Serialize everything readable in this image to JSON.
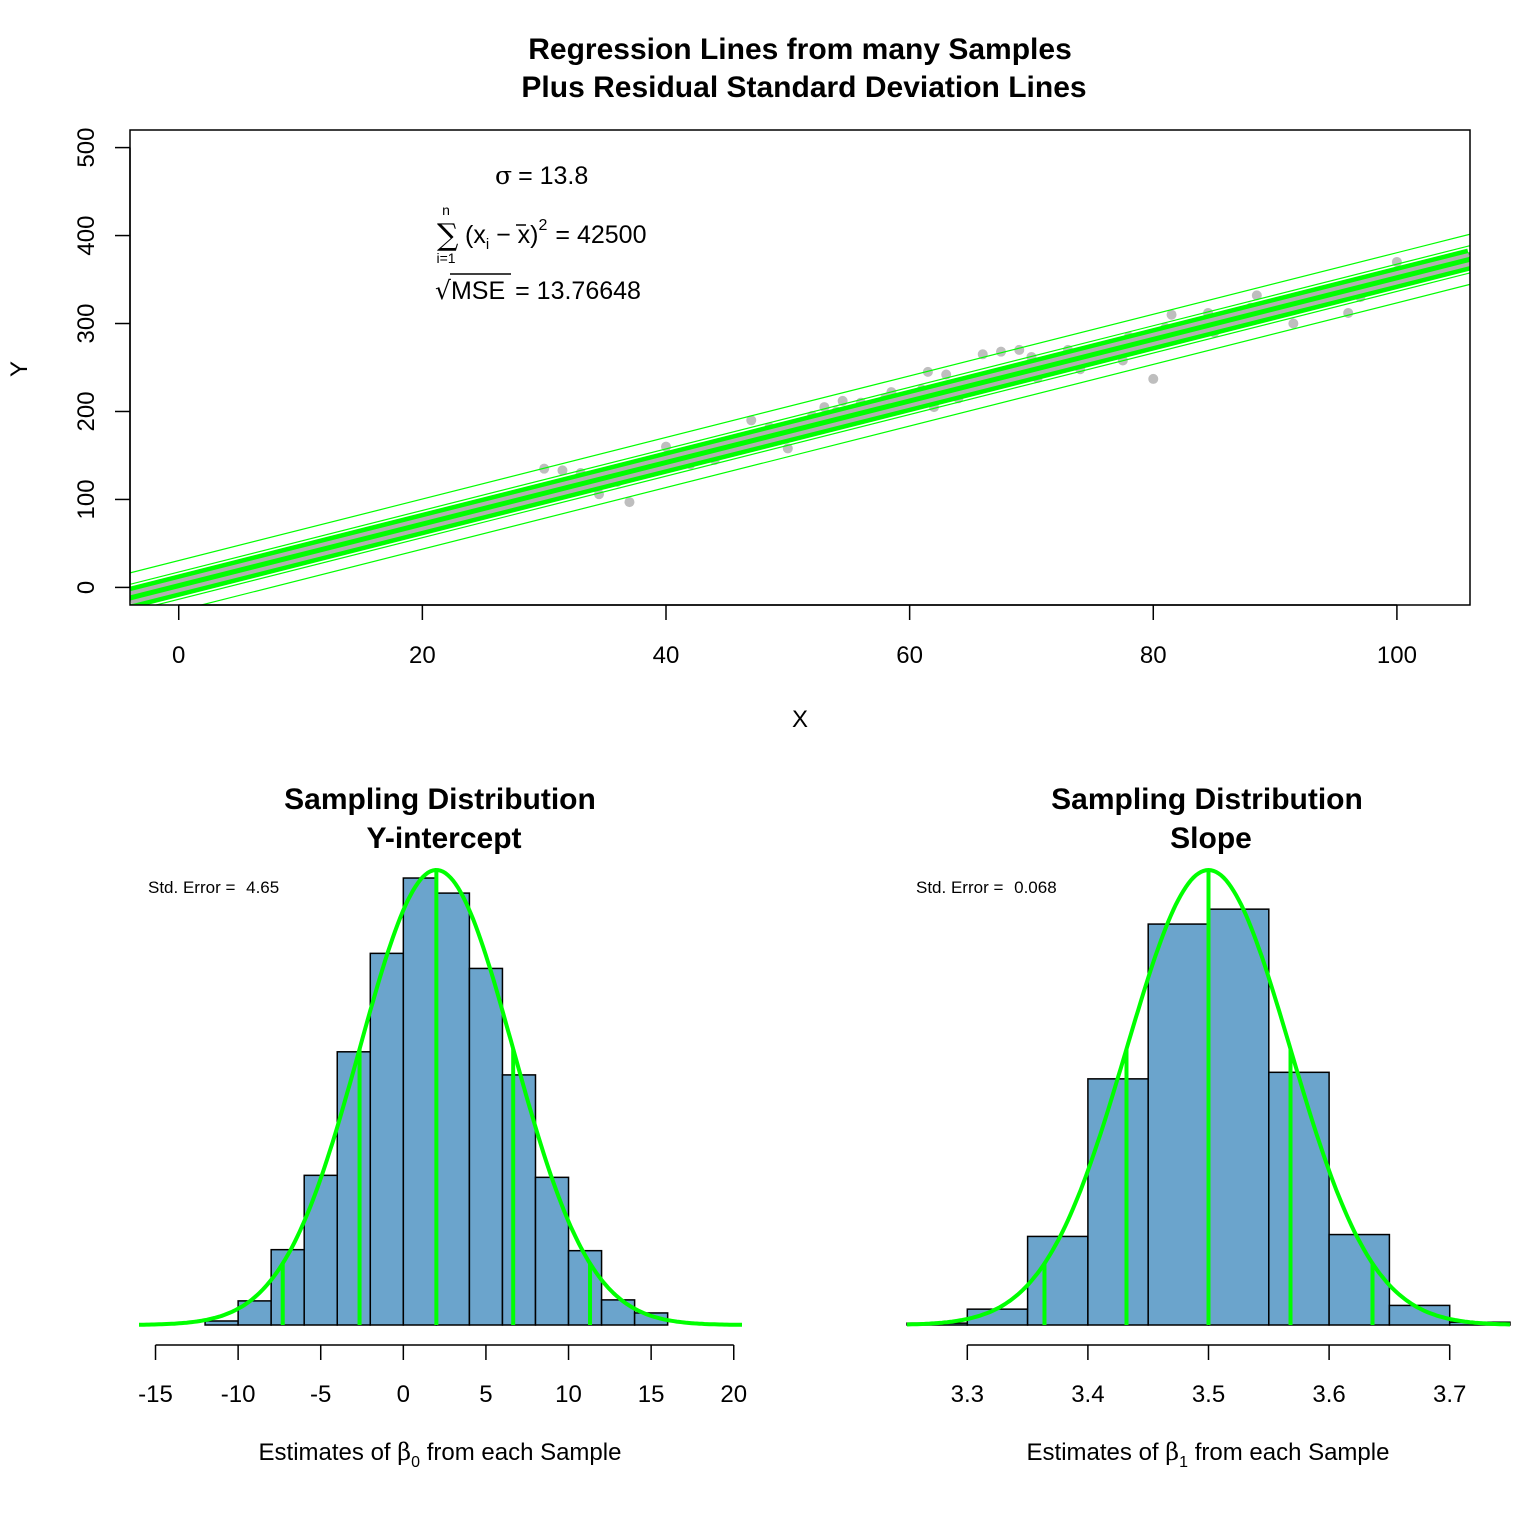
{
  "colors": {
    "line": "#00ff00",
    "point": "#bebebe",
    "bar": "#6ba4cc",
    "band": "#b0b0b0"
  },
  "chart_data": [
    {
      "type": "scatter",
      "title_line1": "Regression Lines from many Samples",
      "title_line2": "Plus Residual Standard Deviation Lines",
      "xlabel": "X",
      "ylabel": "Y",
      "xlim": [
        -4,
        106
      ],
      "ylim": [
        -20,
        520
      ],
      "xticks": [
        0,
        20,
        40,
        60,
        80,
        100
      ],
      "yticks": [
        0,
        100,
        200,
        300,
        400,
        500
      ],
      "annotations": {
        "sigma_sym": "σ",
        "sigma_value": "= 13.8",
        "sum_upper": "n",
        "sum_lower": "i=1",
        "sum_sym": "∑",
        "sum_body": "(x",
        "sum_sub": "i",
        "sum_minus": " − x)",
        "sum_sup": "2",
        "sum_value": "= 42500",
        "sqrt_sym": "√",
        "mse_label": "MSE",
        "mse_value": "= 13.76648"
      },
      "true_line": {
        "intercept": 2,
        "slope": 3.5
      },
      "regression_lines": [
        {
          "intercept": -6,
          "slope": 3.64
        },
        {
          "intercept": 9,
          "slope": 3.34
        }
      ],
      "sd_lines": [
        {
          "intercept": 30.5,
          "slope": 3.5
        },
        {
          "intercept": 17.5,
          "slope": 3.5
        },
        {
          "intercept": -13.5,
          "slope": 3.5
        },
        {
          "intercept": -26.5,
          "slope": 3.5
        }
      ],
      "points": [
        [
          30,
          135
        ],
        [
          31.5,
          133
        ],
        [
          33,
          130
        ],
        [
          34.5,
          106
        ],
        [
          36,
          120
        ],
        [
          37,
          97
        ],
        [
          38,
          130
        ],
        [
          40,
          160
        ],
        [
          41,
          148
        ],
        [
          42,
          140
        ],
        [
          43,
          150
        ],
        [
          44,
          145
        ],
        [
          45,
          158
        ],
        [
          46,
          170
        ],
        [
          47,
          190
        ],
        [
          48,
          165
        ],
        [
          48.5,
          182
        ],
        [
          49,
          175
        ],
        [
          50,
          158
        ],
        [
          51,
          185
        ],
        [
          52,
          195
        ],
        [
          53,
          205
        ],
        [
          54,
          200
        ],
        [
          54.5,
          212
        ],
        [
          55,
          198
        ],
        [
          56,
          210
        ],
        [
          57,
          208
        ],
        [
          58,
          215
        ],
        [
          58.5,
          222
        ],
        [
          59,
          205
        ],
        [
          60,
          215
        ],
        [
          61,
          225
        ],
        [
          61.5,
          245
        ],
        [
          62,
          205
        ],
        [
          63,
          242
        ],
        [
          64,
          215
        ],
        [
          65,
          228
        ],
        [
          66,
          265
        ],
        [
          67,
          242
        ],
        [
          67.5,
          268
        ],
        [
          68,
          240
        ],
        [
          69,
          270
        ],
        [
          69.5,
          250
        ],
        [
          70,
          262
        ],
        [
          70.5,
          238
        ],
        [
          71,
          245
        ],
        [
          72,
          255
        ],
        [
          73,
          270
        ],
        [
          74,
          248
        ],
        [
          75,
          260
        ],
        [
          76,
          275
        ],
        [
          77,
          265
        ],
        [
          77.5,
          258
        ],
        [
          78,
          285
        ],
        [
          79,
          280
        ],
        [
          80,
          237
        ],
        [
          81,
          295
        ],
        [
          81.5,
          310
        ],
        [
          82,
          285
        ],
        [
          83,
          295
        ],
        [
          84,
          300
        ],
        [
          84.5,
          312
        ],
        [
          85,
          290
        ],
        [
          86,
          298
        ],
        [
          87,
          305
        ],
        [
          88,
          318
        ],
        [
          88.5,
          332
        ],
        [
          89,
          315
        ],
        [
          90,
          318
        ],
        [
          91,
          325
        ],
        [
          91.5,
          300
        ],
        [
          92,
          322
        ],
        [
          93,
          328
        ],
        [
          94,
          330
        ],
        [
          95,
          335
        ],
        [
          96,
          312
        ],
        [
          97,
          330
        ],
        [
          98,
          345
        ],
        [
          99,
          350
        ],
        [
          100,
          370
        ]
      ]
    },
    {
      "type": "bar",
      "title_line1": "Sampling Distribution",
      "title_line2": "Y-intercept",
      "xlabel_pre": "Estimates of ",
      "xlabel_sym": "β",
      "xlabel_sub": "0",
      "xlabel_post": " from each Sample",
      "note_label": "Std. Error = ",
      "note_value": "4.65",
      "xlim": [
        -16,
        20.5
      ],
      "xticks": [
        -15,
        -10,
        -5,
        0,
        5,
        10,
        15,
        20
      ],
      "bin_edges": [
        -12,
        -10,
        -8,
        -6,
        -4,
        -2,
        0,
        2,
        4,
        6,
        8,
        10,
        12,
        14,
        16
      ],
      "counts": [
        4,
        24,
        75,
        149,
        272,
        370,
        445,
        430,
        355,
        249,
        147,
        74,
        25,
        12
      ],
      "normal": {
        "mean": 2,
        "sd": 4.65,
        "peak_count": 453
      },
      "sd_markers": [
        -7.3,
        -2.65,
        2,
        6.65,
        11.3
      ]
    },
    {
      "type": "bar",
      "title_line1": "Sampling Distribution",
      "title_line2": "Slope",
      "xlabel_pre": "Estimates of ",
      "xlabel_sym": "β",
      "xlabel_sub": "1",
      "xlabel_post": " from each Sample",
      "note_label": "Std. Error = ",
      "note_value": "0.068",
      "xlim": [
        3.25,
        3.75
      ],
      "xticks": [
        3.3,
        3.4,
        3.5,
        3.6,
        3.7
      ],
      "bin_edges": [
        3.25,
        3.3,
        3.35,
        3.4,
        3.45,
        3.5,
        3.55,
        3.6,
        3.65,
        3.7,
        3.75
      ],
      "counts": [
        2,
        17,
        95,
        264,
        430,
        446,
        271,
        97,
        21,
        3
      ],
      "normal": {
        "mean": 3.5,
        "sd": 0.068,
        "peak_count": 488
      },
      "sd_markers": [
        3.364,
        3.432,
        3.5,
        3.568,
        3.636
      ]
    }
  ]
}
